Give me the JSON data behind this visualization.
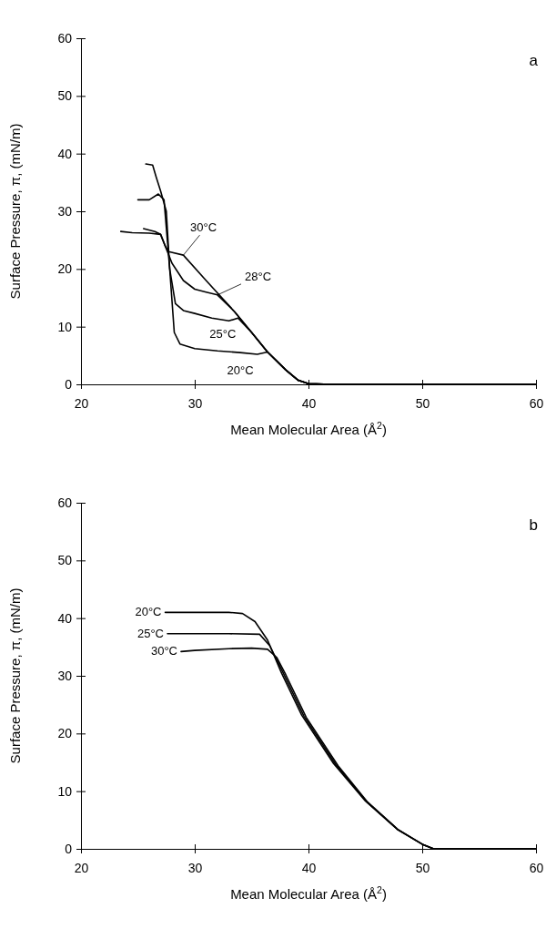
{
  "chart_data": [
    {
      "type": "line",
      "title": "a",
      "xlabel": "Mean Molecular Area (Å$^{2}$)",
      "ylabel": "Surface Pressure, π, (mN/m)",
      "xlim": [
        20,
        60
      ],
      "xticks": [
        20,
        30,
        40,
        50,
        60
      ],
      "ylim": [
        0,
        60
      ],
      "yticks": [
        0,
        10,
        20,
        30,
        40,
        50,
        60
      ],
      "grid": false,
      "legend": false,
      "marker": "none",
      "line_style": "solid",
      "series": [
        {
          "name": "30°C",
          "color": "#000000",
          "x": [
            23.5,
            24.5,
            26,
            27,
            27.4,
            27.7,
            29,
            31,
            33.5,
            35,
            36.4,
            38,
            39.1,
            40,
            42,
            60
          ],
          "values": [
            26.5,
            26.3,
            26.2,
            26,
            24,
            23,
            22.4,
            18,
            12.6,
            9,
            5.6,
            2.5,
            0.7,
            0.1,
            0,
            0
          ]
        },
        {
          "name": "28°C",
          "color": "#000000",
          "x": [
            25.5,
            26.5,
            27,
            27.5,
            28,
            29,
            30,
            31,
            32,
            33.5,
            35,
            36.4,
            38,
            39.1,
            40,
            42,
            60
          ],
          "values": [
            27,
            26.5,
            26,
            23.5,
            21,
            18,
            16.5,
            16,
            15.5,
            12.6,
            9,
            5.6,
            2.5,
            0.7,
            0.1,
            0,
            0
          ]
        },
        {
          "name": "25°C",
          "color": "#000000",
          "x": [
            25,
            26,
            26.8,
            27.3,
            27.8,
            28.3,
            29,
            30,
            31.5,
            33,
            33.8,
            35,
            36.4,
            38,
            39.1,
            40,
            42,
            60
          ],
          "values": [
            32,
            32,
            33,
            32,
            20,
            14,
            12.8,
            12.3,
            11.5,
            11,
            11.5,
            9,
            5.6,
            2.5,
            0.7,
            0.1,
            0,
            0
          ]
        },
        {
          "name": "20°C",
          "color": "#000000",
          "x": [
            25.7,
            26.3,
            26.6,
            27,
            27.5,
            27.8,
            28.2,
            28.7,
            30,
            32,
            34,
            35.5,
            36.4,
            38,
            39.1,
            40,
            42,
            60
          ],
          "values": [
            38.2,
            38,
            36,
            33.5,
            30,
            20,
            9,
            7,
            6.2,
            5.8,
            5.5,
            5.2,
            5.6,
            2.5,
            0.7,
            0.1,
            0,
            0
          ]
        }
      ]
    },
    {
      "type": "line",
      "title": "b",
      "xlabel": "Mean Molecular Area (Å$^{2}$)",
      "ylabel": "Surface Pressure, π, (mN/m)",
      "xlim": [
        20,
        60
      ],
      "xticks": [
        20,
        30,
        40,
        50,
        60
      ],
      "ylim": [
        0,
        60
      ],
      "yticks": [
        0,
        10,
        20,
        30,
        40,
        50,
        60
      ],
      "grid": false,
      "legend": false,
      "marker": "none",
      "line_style": "solid",
      "series": [
        {
          "name": "20°C",
          "color": "#000000",
          "x": [
            27.4,
            30,
            33,
            34.2,
            35.3,
            36.4,
            37.6,
            39.4,
            42.2,
            45,
            47.8,
            50,
            51,
            55,
            60
          ],
          "values": [
            41,
            41,
            41,
            40.8,
            39.4,
            36.2,
            30.6,
            23.2,
            14.8,
            8.3,
            3.4,
            0.8,
            0,
            0,
            0
          ]
        },
        {
          "name": "25°C",
          "color": "#000000",
          "x": [
            27.6,
            30,
            33,
            35.7,
            36.6,
            37.8,
            39.6,
            42.4,
            45.1,
            47.8,
            50,
            51,
            55,
            60
          ],
          "values": [
            37.3,
            37.3,
            37.3,
            37.2,
            35.2,
            30.4,
            23,
            14.6,
            8.2,
            3.4,
            0.8,
            0,
            0,
            0
          ]
        },
        {
          "name": "30°C",
          "color": "#000000",
          "x": [
            28.8,
            30,
            33,
            35,
            36.4,
            37.2,
            38,
            39.8,
            42.6,
            45.2,
            47.9,
            50,
            51,
            55,
            60
          ],
          "values": [
            34.2,
            34.4,
            34.7,
            34.8,
            34.6,
            33.2,
            30.2,
            22.8,
            14.4,
            8.1,
            3.3,
            0.8,
            0,
            0,
            0
          ]
        }
      ]
    }
  ]
}
